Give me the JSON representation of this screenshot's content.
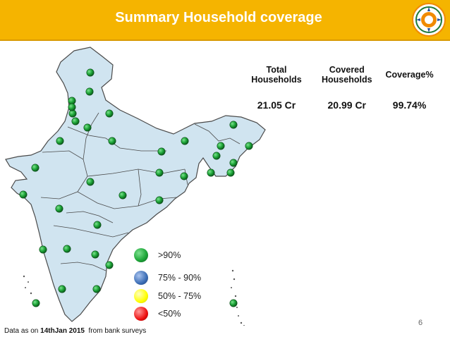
{
  "header": {
    "title": "Summary Household coverage",
    "logo_icon": "pmjdy-logo-icon"
  },
  "table": {
    "headers": [
      "Total Households",
      "Covered Households",
      "Coverage%"
    ],
    "row": [
      "21.05 Cr",
      "20.99 Cr",
      "99.74%"
    ]
  },
  "map": {
    "region": "India states",
    "fill_color": "#d0e4f0",
    "dot_category": ">90%",
    "dot_count": 36
  },
  "legend": [
    {
      "label": ">90%",
      "color": "#2bb24c"
    },
    {
      "label": "75% - 90%",
      "color": "#3b6db5"
    },
    {
      "label": "50% - 75%",
      "color": "#ffff00"
    },
    {
      "label": "<50%",
      "color": "#ee1111"
    }
  ],
  "page_number": "6",
  "footnote": {
    "prefix": "Data as on ",
    "date": "14thJan 2015",
    "suffix": "  from bank surveys"
  }
}
